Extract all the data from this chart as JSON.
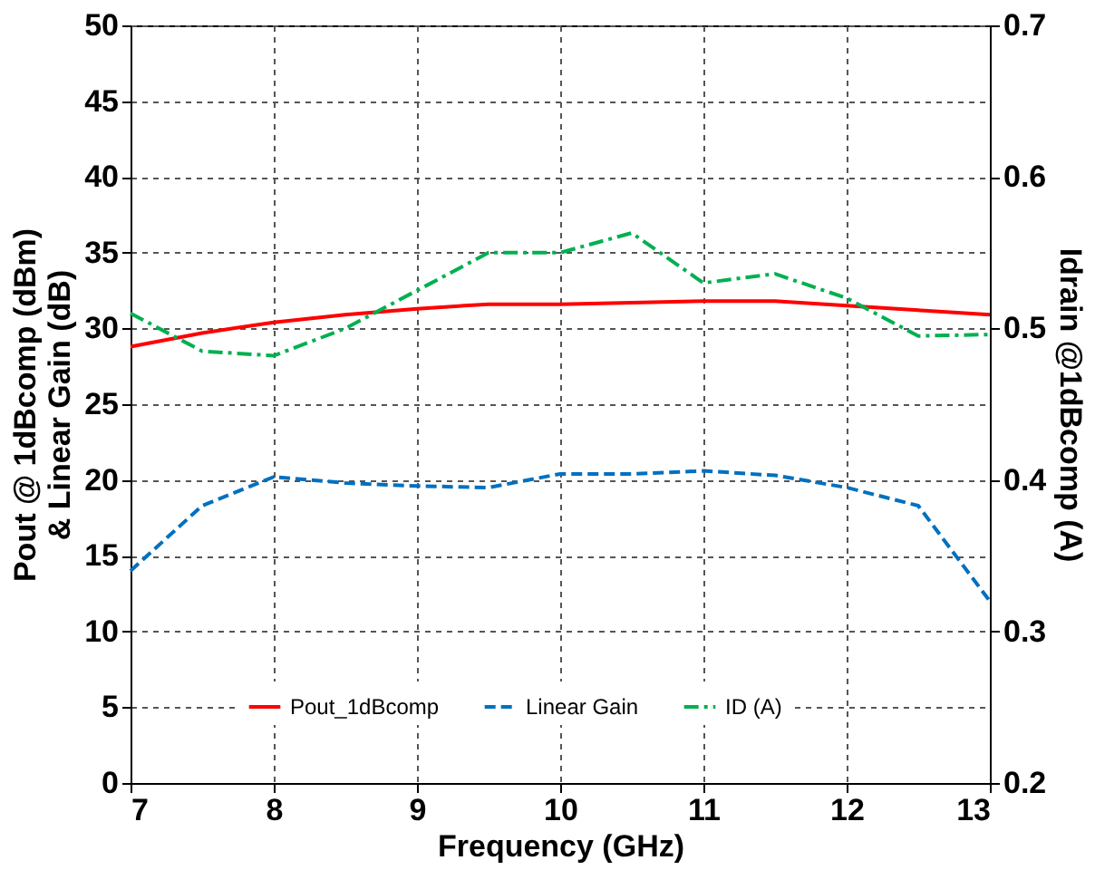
{
  "chart_data": {
    "type": "line",
    "xlabel": "Frequency (GHz)",
    "ylabel": "Pout @ 1dBcomp (dBm) & Linear Gain (dB)",
    "y2label": "Idrain @1dBcomp (A)",
    "xlim": [
      7,
      13
    ],
    "xticks": [
      7,
      8,
      9,
      10,
      11,
      12,
      13
    ],
    "ylim": [
      0,
      50
    ],
    "yticks": [
      0,
      5,
      10,
      15,
      20,
      25,
      30,
      35,
      40,
      45,
      50
    ],
    "y2lim": [
      0.2,
      0.7
    ],
    "y2ticks": [
      0.2,
      0.3,
      0.4,
      0.5,
      0.6,
      0.7
    ],
    "grid": true,
    "legend": "bottom",
    "marker": "none",
    "x": [
      7,
      7.5,
      8,
      8.5,
      9,
      9.5,
      10,
      10.5,
      11,
      11.5,
      12,
      12.5,
      13
    ],
    "series": [
      {
        "name": "Pout_1dBcomp",
        "color": "#ff0000",
        "line_style": "solid",
        "values": [
          28.8,
          29.7,
          30.4,
          30.9,
          31.3,
          31.6,
          31.6,
          31.7,
          31.8,
          31.8,
          31.5,
          31.2,
          30.9
        ]
      },
      {
        "name": "Linear Gain",
        "color": "#0070c0",
        "line_style": "dashed",
        "values": [
          14,
          18.3,
          20.2,
          19.8,
          19.6,
          19.5,
          20.4,
          20.4,
          20.6,
          20.3,
          19.5,
          18.3,
          12
        ]
      },
      {
        "name": "ID (A)",
        "color": "#00b050",
        "line_style": "dashdot",
        "axis": "y2",
        "values": [
          0.51,
          0.485,
          0.482,
          0.5,
          0.525,
          0.55,
          0.55,
          0.563,
          0.53,
          0.536,
          0.52,
          0.495,
          0.496
        ]
      }
    ]
  }
}
